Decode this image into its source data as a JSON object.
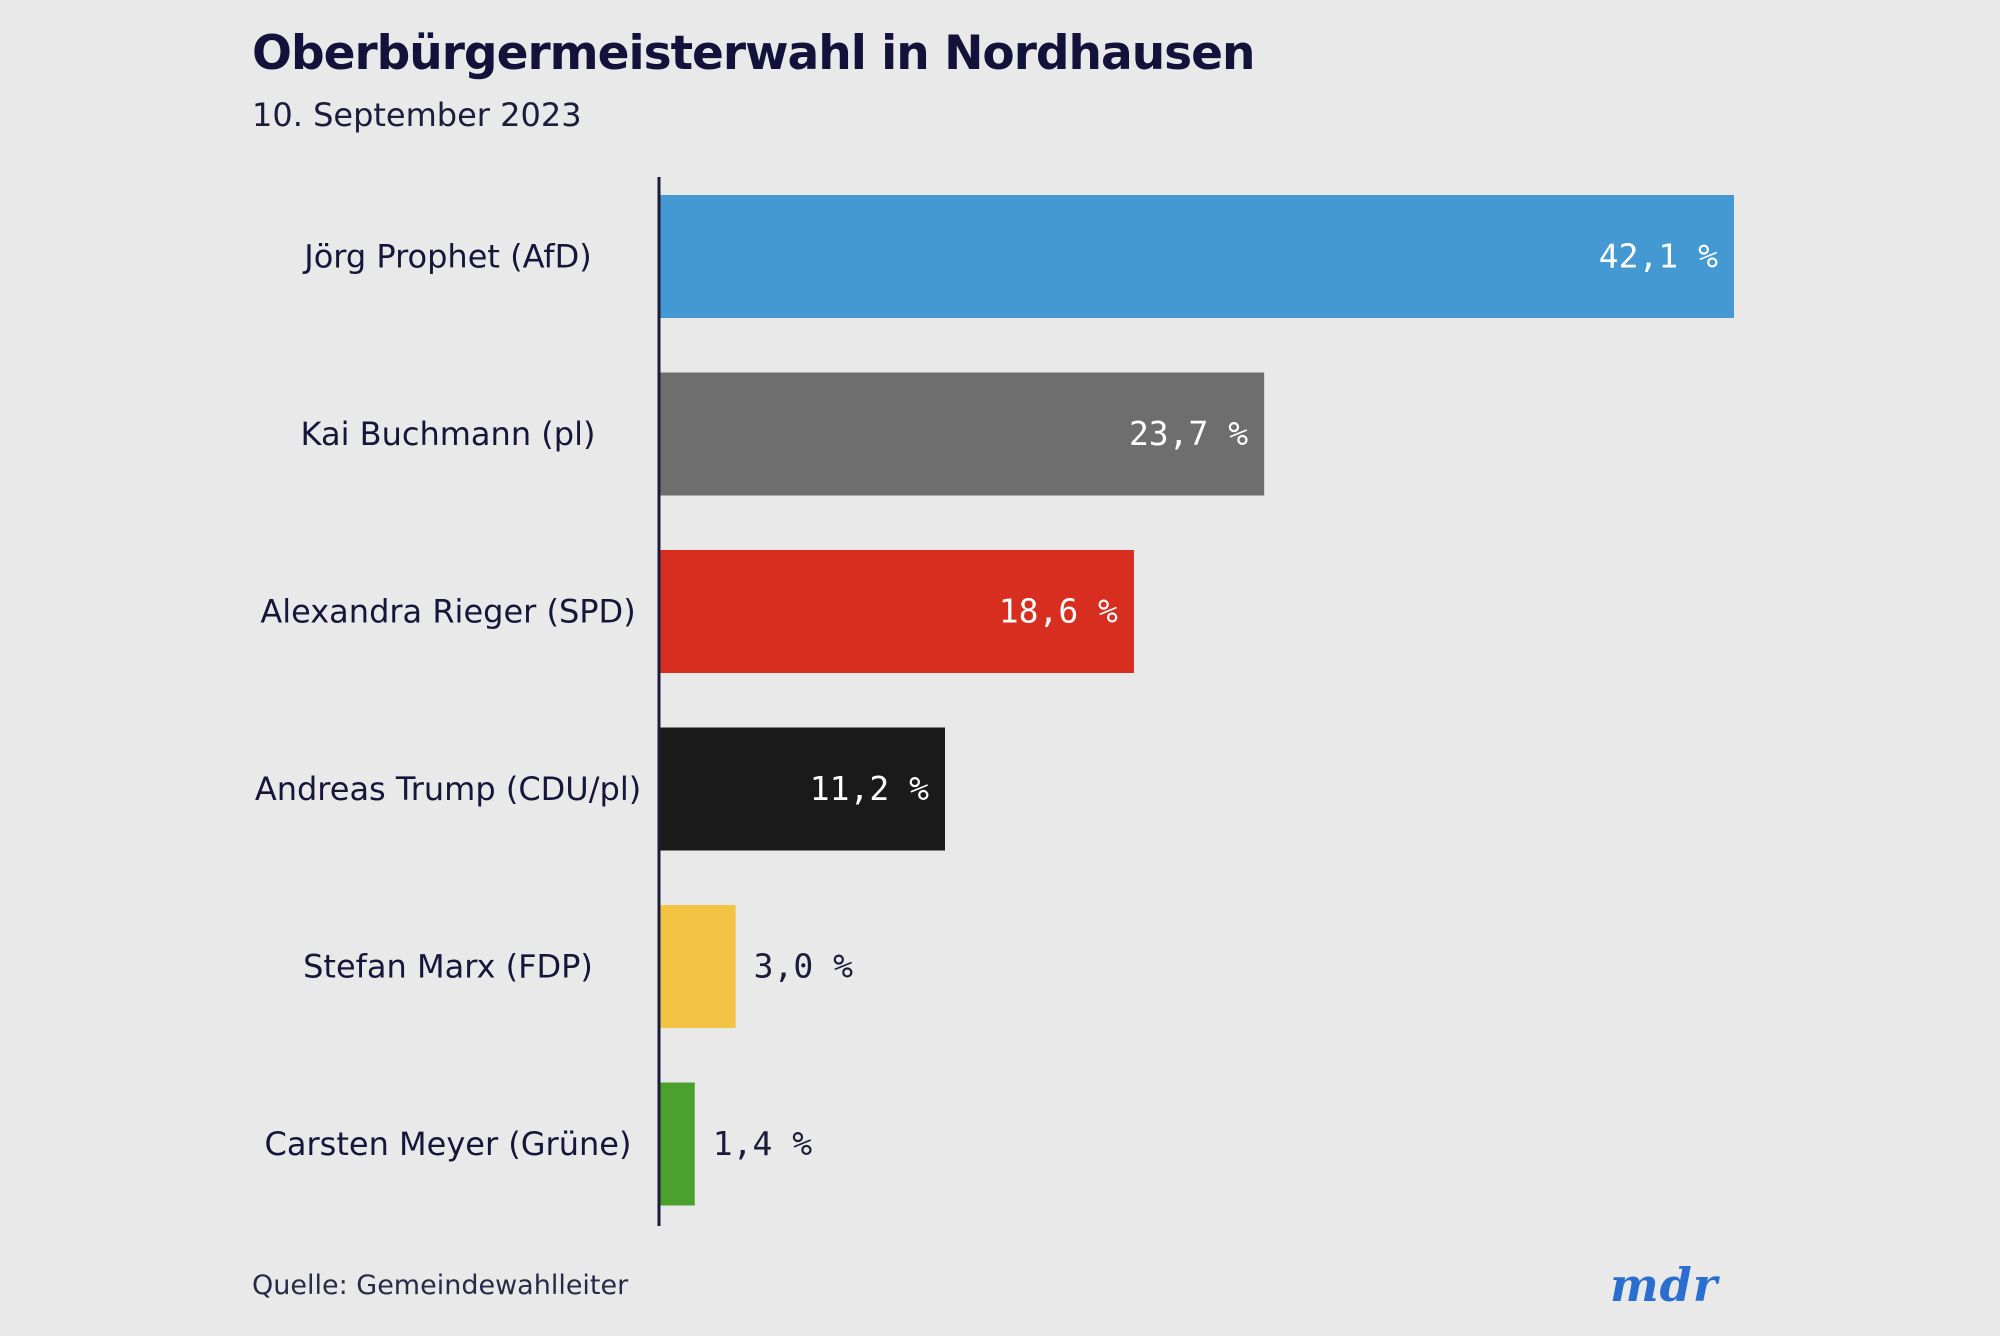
{
  "header": {
    "title": "Oberbürgermeisterwahl in Nordhausen",
    "subtitle": "10. September 2023"
  },
  "footer": {
    "source": "Quelle: Gemeindewahlleiter",
    "logo": "mdr"
  },
  "colors": {
    "background": "#e9e9e9",
    "axis": "#1c1c3a",
    "label_inside": "#ffffff",
    "label_outside": "#1c1c3a",
    "logo": "#2a6fcf"
  },
  "chart_data": {
    "type": "bar",
    "orientation": "horizontal",
    "title": "Oberbürgermeisterwahl in Nordhausen",
    "subtitle": "10. September 2023",
    "xlabel": "",
    "ylabel": "",
    "unit": "%",
    "xlim": [
      0,
      42.1
    ],
    "grid": false,
    "legend": "none",
    "categories": [
      "Jörg Prophet (AfD)",
      "Kai Buchmann (pl)",
      "Alexandra Rieger (SPD)",
      "Andreas Trump (CDU/pl)",
      "Stefan Marx (FDP)",
      "Carsten Meyer (Grüne)"
    ],
    "values": [
      42.1,
      23.7,
      18.6,
      11.2,
      3.0,
      1.4
    ],
    "value_labels": [
      "42,1 %",
      "23,7 %",
      "18,6 %",
      "11,2 %",
      "3,0 %",
      "1,4 %"
    ],
    "bar_colors": [
      "#4599d2",
      "#6e6e6e",
      "#d82e20",
      "#1a1a1a",
      "#f3c444",
      "#4aa12e"
    ],
    "source": "Quelle: Gemeindewahlleiter"
  }
}
